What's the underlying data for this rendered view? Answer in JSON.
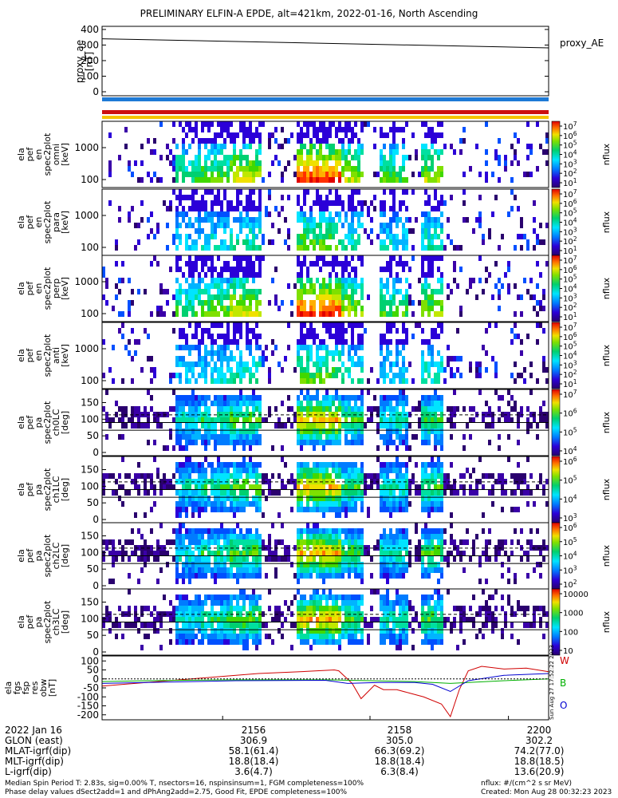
{
  "title": "PRELIMINARY ELFIN-A EPDE, alt=421km, 2022-01-16, North Ascending",
  "colors": {
    "mode_bar_top": "#1e7ad6",
    "mode_bar_mid": "#cc1010",
    "mode_bar_bot": "#f5c400"
  },
  "chart_data": [
    {
      "type": "line",
      "panel": "proxy_ae",
      "ylabel": [
        "proxy_ae",
        "[nT]"
      ],
      "ylim": [
        0,
        420
      ],
      "yticks": [
        "400",
        "300",
        "200",
        "100",
        "0"
      ],
      "legend": "proxy_AE",
      "series": [
        {
          "name": "proxy_AE",
          "x": [
            0,
            1
          ],
          "values": [
            340,
            282
          ]
        }
      ]
    },
    {
      "type": "heatmap",
      "panels": [
        {
          "ylabel": [
            "ela",
            "pef",
            "en",
            "spec2plot",
            "omni",
            "[keV]"
          ],
          "yticks": [
            "1000",
            "100"
          ],
          "cbar_ticks": [
            "10^7",
            "10^6",
            "10^5",
            "10^4",
            "10^3",
            "10^2",
            "10^1"
          ],
          "cbar_label": "nflux"
        },
        {
          "ylabel": [
            "ela",
            "pef",
            "en",
            "spec2plot",
            "para",
            "[keV]"
          ],
          "yticks": [
            "1000",
            "100"
          ],
          "cbar_ticks": [
            "10^7",
            "10^6",
            "10^5",
            "10^4",
            "10^3",
            "10^2",
            "10^1"
          ],
          "cbar_label": "nflux"
        },
        {
          "ylabel": [
            "ela",
            "pef",
            "en",
            "spec2plot",
            "perp",
            "[keV]"
          ],
          "yticks": [
            "1000",
            "100"
          ],
          "cbar_ticks": [
            "10^7",
            "10^6",
            "10^5",
            "10^4",
            "10^3",
            "10^2",
            "10^1"
          ],
          "cbar_label": "nflux"
        },
        {
          "ylabel": [
            "ela",
            "pef",
            "en",
            "spec2plot",
            "anti",
            "[keV]"
          ],
          "yticks": [
            "1000",
            "100"
          ],
          "cbar_ticks": [
            "10^7",
            "10^6",
            "10^5",
            "10^4",
            "10^3",
            "10^2",
            "10^1"
          ],
          "cbar_label": "nflux"
        },
        {
          "ylabel": [
            "ela",
            "pef",
            "pa",
            "spec2plot",
            "ch0LC",
            "[deg]"
          ],
          "yticks": [
            "150",
            "100",
            "50",
            "0"
          ],
          "cbar_ticks": [
            "10^7",
            "10^6",
            "10^5",
            "10^4"
          ],
          "cbar_label": "nflux"
        },
        {
          "ylabel": [
            "ela",
            "pef",
            "pa",
            "spec2plot",
            "ch1LC",
            "[deg]"
          ],
          "yticks": [
            "150",
            "100",
            "50",
            "0"
          ],
          "cbar_ticks": [
            "10^6",
            "10^5",
            "10^4",
            "10^3"
          ],
          "cbar_label": "nflux"
        },
        {
          "ylabel": [
            "ela",
            "pef",
            "pa",
            "spec2plot",
            "ch2LC",
            "[deg]"
          ],
          "yticks": [
            "150",
            "100",
            "50",
            "0"
          ],
          "cbar_ticks": [
            "10^6",
            "10^5",
            "10^4",
            "10^3",
            "10^2"
          ],
          "cbar_label": "nflux"
        },
        {
          "ylabel": [
            "ela",
            "pef",
            "pa",
            "spec2plot",
            "ch3LC",
            "[deg]"
          ],
          "yticks": [
            "150",
            "100",
            "50",
            "0"
          ],
          "cbar_ticks": [
            "10000",
            "1000",
            "100",
            "10"
          ],
          "cbar_label": "nflux"
        }
      ]
    },
    {
      "type": "line",
      "panel": "fgs",
      "ylabel": [
        "ela",
        "fgs",
        "fsp",
        "res",
        "obw",
        "[nT]"
      ],
      "ylim": [
        -210,
        110
      ],
      "yticks": [
        "100",
        "50",
        "0",
        "-50",
        "-100",
        "-150",
        "-200"
      ],
      "series": [
        {
          "name": "W",
          "color": "#d00000",
          "x": [
            0,
            0.06,
            0.2,
            0.35,
            0.46,
            0.52,
            0.53,
            0.56,
            0.58,
            0.61,
            0.63,
            0.66,
            0.69,
            0.72,
            0.76,
            0.78,
            0.8,
            0.82,
            0.85,
            0.9,
            0.95,
            1.0
          ],
          "values": [
            -40,
            -28,
            0,
            30,
            42,
            50,
            45,
            -25,
            -110,
            -35,
            -60,
            -60,
            -80,
            -100,
            -140,
            -210,
            -60,
            45,
            70,
            55,
            60,
            40
          ]
        },
        {
          "name": "B",
          "color": "#00b000",
          "x": [
            0,
            0.1,
            0.3,
            0.5,
            0.6,
            0.7,
            0.78,
            0.82,
            0.9,
            1.0
          ],
          "values": [
            -15,
            -10,
            -5,
            -5,
            -10,
            -15,
            -25,
            -20,
            -10,
            0
          ]
        },
        {
          "name": "O",
          "color": "#0000d0",
          "x": [
            0,
            0.1,
            0.3,
            0.5,
            0.55,
            0.62,
            0.7,
            0.74,
            0.78,
            0.82,
            0.9,
            1.0
          ],
          "values": [
            -25,
            -20,
            -10,
            -8,
            -25,
            -20,
            -20,
            -30,
            -70,
            -10,
            20,
            30
          ]
        }
      ],
      "side_text": "Sun Aug 27 17:52:22 2023"
    }
  ],
  "footer": {
    "date": "2022 Jan 16",
    "row_labels": [
      "GLON (east)",
      "MLAT-igrf(dip)",
      "MLT-igrf(dip)",
      "L-igrf(dip)"
    ],
    "times": [
      "2156",
      "2158",
      "2200"
    ],
    "columns": [
      [
        "306.9",
        "58.1(61.4)",
        "18.8(18.4)",
        "3.6(4.7)"
      ],
      [
        "305.0",
        "66.3(69.2)",
        "18.8(18.4)",
        "6.3(8.4)"
      ],
      [
        "302.2",
        "74.2(77.0)",
        "18.8(18.5)",
        "13.6(20.9)"
      ]
    ],
    "note_left_1": "Median Spin Period T: 2.83s, sig=0.00% T, nsectors=16, nspinsinsum=1, FGM completeness=100%",
    "note_left_2": "Phase delay values dSect2add=1 and dPhAng2add=2.75, Good Fit, EPDE completeness=100%",
    "note_right_1": "nflux: #/(cm^2 s sr MeV)",
    "note_right_2": "Created: Mon Aug 28 00:32:23 2023"
  }
}
